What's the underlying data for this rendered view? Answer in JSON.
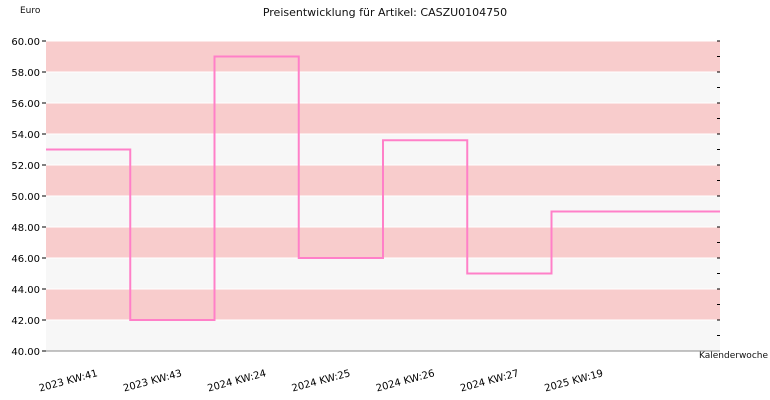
{
  "chart_data": {
    "type": "line",
    "step": true,
    "title": "Preisentwicklung für Artikel: CASZU0104750",
    "ylabel": "Euro",
    "xlabel": "Kalenderwoche",
    "ylim": [
      40,
      60
    ],
    "y_ticks": [
      "40.00",
      "42.00",
      "44.00",
      "46.00",
      "48.00",
      "50.00",
      "52.00",
      "54.00",
      "56.00",
      "58.00",
      "60.00"
    ],
    "categories": [
      "2023 KW:41",
      "2023 KW:43",
      "2024 KW:24",
      "2024 KW:25",
      "2024 KW:26",
      "2024 KW:27",
      "2025 KW:19"
    ],
    "series": [
      {
        "values": [
          53,
          42,
          59,
          46,
          53.6,
          45,
          49
        ]
      }
    ],
    "grid": true,
    "colors": {
      "line": "#ff80c8",
      "band_dark": "#f8cccc",
      "band_light": "#f7f7f7",
      "axis": "#000000"
    }
  }
}
